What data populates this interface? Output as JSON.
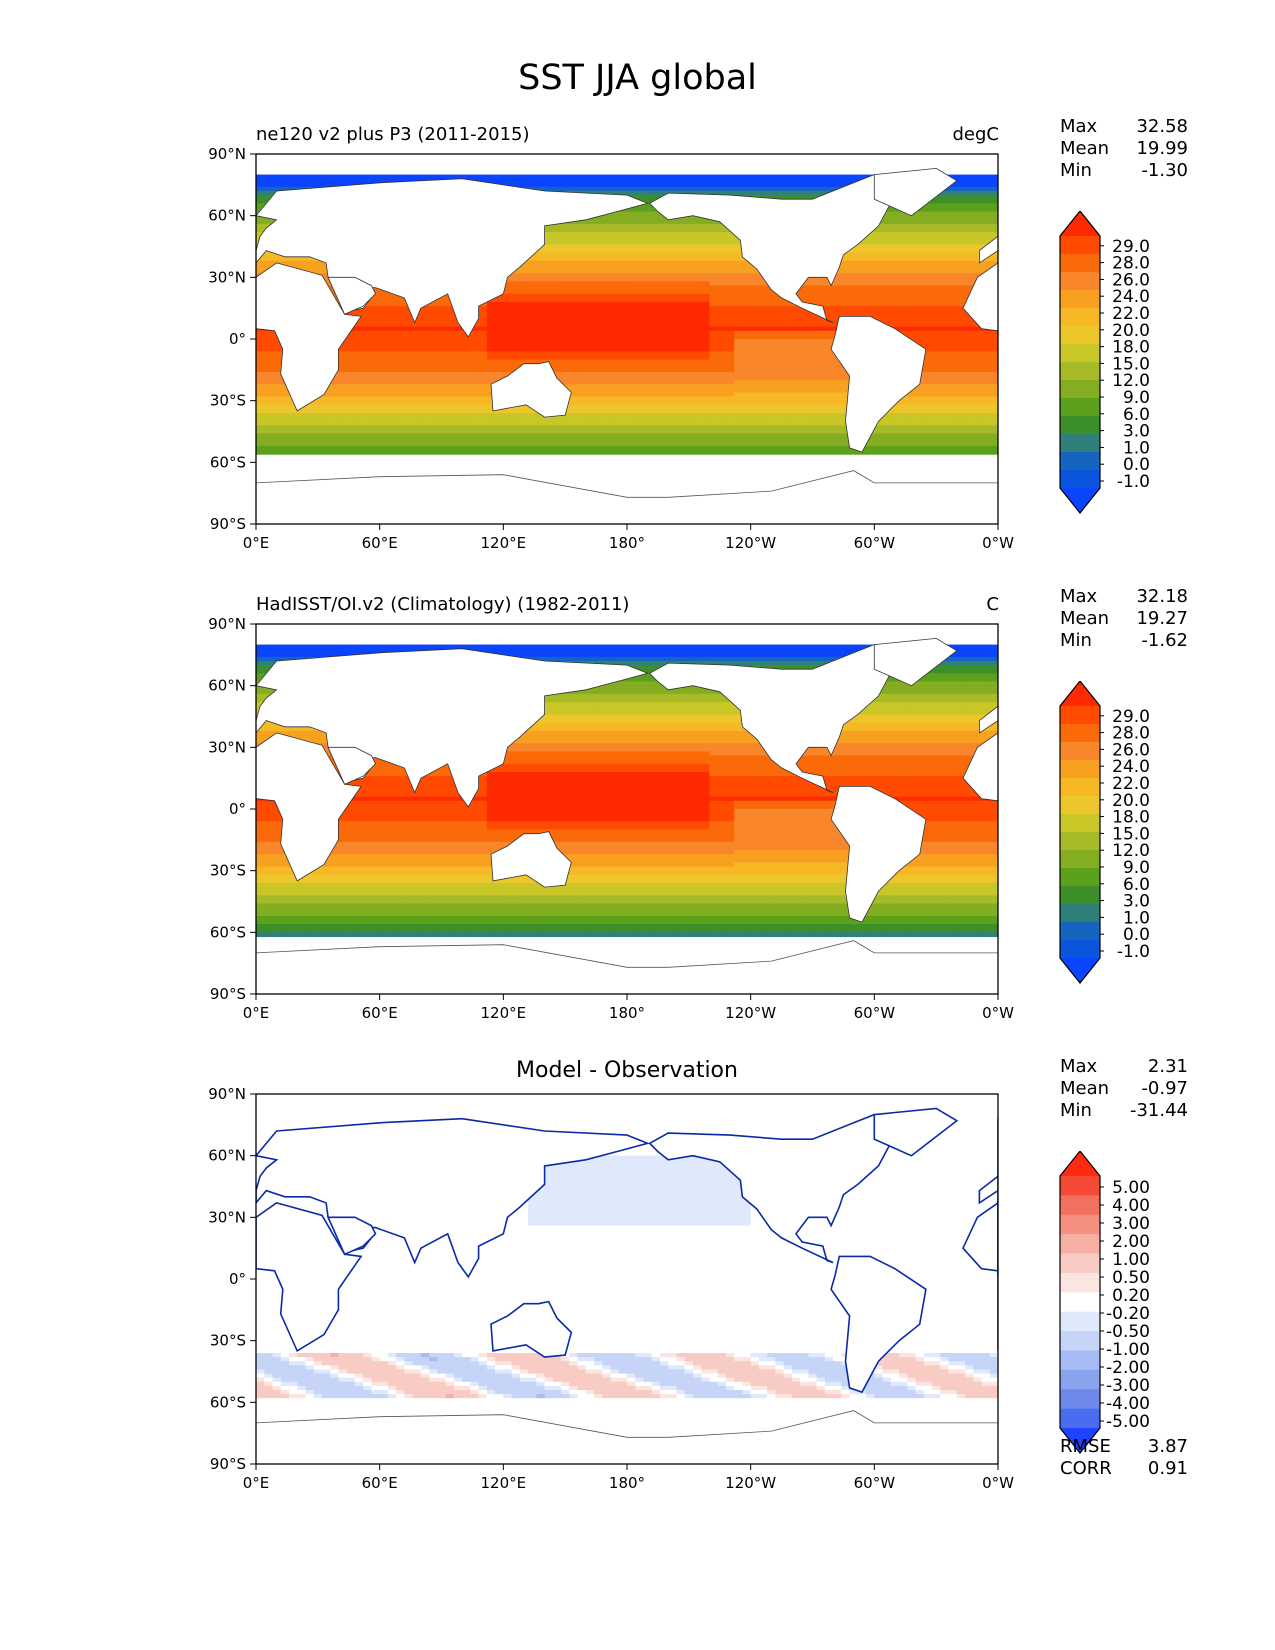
{
  "figure": {
    "title": "SST JJA global"
  },
  "axes": {
    "lat_labels": [
      "90°N",
      "60°N",
      "30°N",
      "0°",
      "30°S",
      "60°S",
      "90°S"
    ],
    "lon_labels": [
      "0°E",
      "60°E",
      "120°E",
      "180°",
      "120°W",
      "60°W",
      "0°W"
    ]
  },
  "panels": [
    {
      "title_left": "ne120 v2 plus P3 (2011-2015)",
      "title_right": "degC",
      "title_center": "",
      "stats": {
        "max_label": "Max",
        "max": "32.58",
        "mean_label": "Mean",
        "mean": "19.99",
        "min_label": "Min",
        "min": "-1.30"
      },
      "colorbar": {
        "labels": [
          "29.0",
          "28.0",
          "26.0",
          "24.0",
          "22.0",
          "20.0",
          "18.0",
          "15.0",
          "12.0",
          "9.0",
          "6.0",
          "3.0",
          "1.0",
          "0.0",
          "-1.0"
        ],
        "colors": [
          "#ff2a00",
          "#ff4a00",
          "#fb6a08",
          "#f9862a",
          "#f8a020",
          "#f6b824",
          "#ecc62b",
          "#c9c628",
          "#a7bb28",
          "#84ad22",
          "#5ca11c",
          "#3d8f2a",
          "#2f7f7a",
          "#1565bf",
          "#0a55dd",
          "#0a44ff"
        ]
      }
    },
    {
      "title_left": "HadISST/OI.v2 (Climatology) (1982-2011)",
      "title_right": "C",
      "title_center": "",
      "stats": {
        "max_label": "Max",
        "max": "32.18",
        "mean_label": "Mean",
        "mean": "19.27",
        "min_label": "Min",
        "min": "-1.62"
      },
      "colorbar": {
        "labels": [
          "29.0",
          "28.0",
          "26.0",
          "24.0",
          "22.0",
          "20.0",
          "18.0",
          "15.0",
          "12.0",
          "9.0",
          "6.0",
          "3.0",
          "1.0",
          "0.0",
          "-1.0"
        ],
        "colors": [
          "#ff2a00",
          "#ff4a00",
          "#fb6a08",
          "#f9862a",
          "#f8a020",
          "#f6b824",
          "#ecc62b",
          "#c9c628",
          "#a7bb28",
          "#84ad22",
          "#5ca11c",
          "#3d8f2a",
          "#2f7f7a",
          "#1565bf",
          "#0a55dd",
          "#0a44ff"
        ]
      }
    },
    {
      "title_left": "",
      "title_right": "",
      "title_center": "Model - Observation",
      "stats": {
        "max_label": "Max",
        "max": "2.31",
        "mean_label": "Mean",
        "mean": "-0.97",
        "min_label": "Min",
        "min": "-31.44"
      },
      "colorbar": {
        "labels": [
          "5.00",
          "4.00",
          "3.00",
          "2.00",
          "1.00",
          "0.50",
          "0.20",
          "-0.20",
          "-0.50",
          "-1.00",
          "-2.00",
          "-3.00",
          "-4.00",
          "-5.00"
        ],
        "colors": [
          "#ff2a10",
          "#f54a35",
          "#f3705e",
          "#f59080",
          "#f6b0a4",
          "#f8ccc4",
          "#fbe5e0",
          "#ffffff",
          "#e0e8fb",
          "#c6d4f8",
          "#a7bbf4",
          "#8aa3ef",
          "#6d88ea",
          "#4a6df0",
          "#1f44ff"
        ]
      },
      "rmse_label": "RMSE",
      "rmse": "3.87",
      "corr_label": "CORR",
      "corr": "0.91"
    }
  ]
}
